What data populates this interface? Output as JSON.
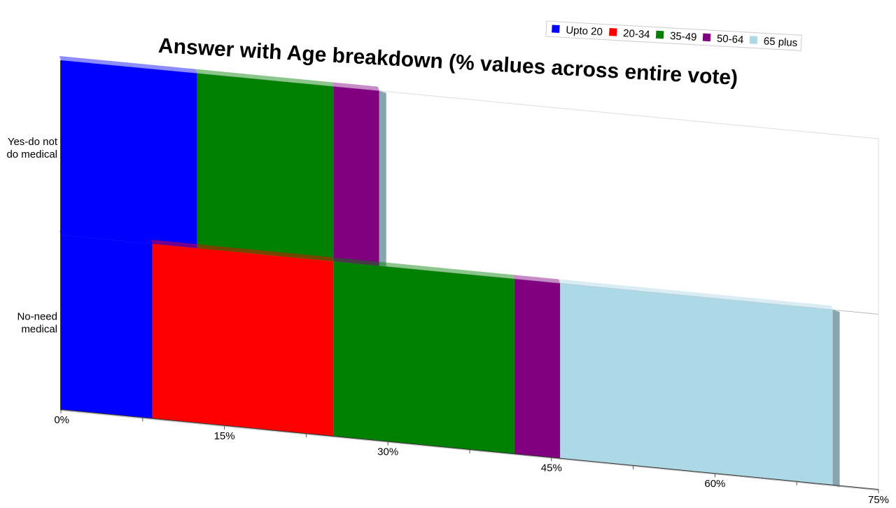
{
  "chart_data": {
    "type": "bar",
    "orientation": "horizontal",
    "stacked": true,
    "title": "Answer with Age breakdown (% values across entire vote)",
    "categories": [
      "Yes-do not do medical",
      "No-need medical"
    ],
    "category_lines": [
      [
        "Yes-do not",
        "do medical"
      ],
      [
        "No-need",
        "medical"
      ]
    ],
    "series": [
      {
        "name": "Upto 20",
        "color": "#0000ff",
        "values": [
          12.5,
          8.4
        ]
      },
      {
        "name": "20-34",
        "color": "#ff0000",
        "values": [
          0,
          16.6
        ]
      },
      {
        "name": "35-49",
        "color": "#008000",
        "values": [
          12.5,
          16.6
        ]
      },
      {
        "name": "50-64",
        "color": "#800080",
        "values": [
          4.2,
          4.2
        ]
      },
      {
        "name": "65 plus",
        "color": "#add8e6",
        "values": [
          0,
          25
        ]
      }
    ],
    "xlim": [
      0,
      75
    ],
    "x_ticks": [
      "0%",
      "15%",
      "30%",
      "45%",
      "60%",
      "75%"
    ],
    "legend_position": "top-right",
    "grid": false
  }
}
